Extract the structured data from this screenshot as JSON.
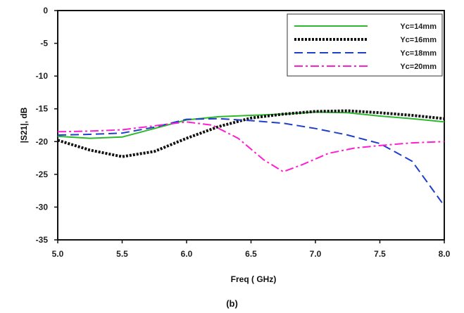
{
  "chart_data": {
    "type": "line",
    "title": "",
    "xlabel": "Freq ( GHz)",
    "ylabel": "|S21|, dB",
    "xlim": [
      5.0,
      8.0
    ],
    "ylim": [
      -35,
      0
    ],
    "x_ticks": [
      "5.0",
      "5.5",
      "6.0",
      "6.5",
      "7.0",
      "7.5",
      "8.0"
    ],
    "y_ticks": [
      "0",
      "-5",
      "-10",
      "-15",
      "-20",
      "-25",
      "-30",
      "-35"
    ],
    "grid": false,
    "legend_position": "top-right",
    "series": [
      {
        "name": "Yc=14mm",
        "color": "#2db82d",
        "dash": "solid",
        "points": [
          [
            5.0,
            -19.2
          ],
          [
            5.25,
            -19.5
          ],
          [
            5.5,
            -19.3
          ],
          [
            5.75,
            -18.0
          ],
          [
            6.0,
            -16.7
          ],
          [
            6.25,
            -16.2
          ],
          [
            6.5,
            -16.0
          ],
          [
            6.75,
            -15.8
          ],
          [
            7.0,
            -15.5
          ],
          [
            7.25,
            -15.6
          ],
          [
            7.5,
            -16.1
          ],
          [
            7.75,
            -16.5
          ],
          [
            8.0,
            -17.0
          ]
        ]
      },
      {
        "name": "Yc=16mm",
        "color": "#111111",
        "dash": "dotted",
        "points": [
          [
            5.0,
            -19.8
          ],
          [
            5.25,
            -21.3
          ],
          [
            5.5,
            -22.3
          ],
          [
            5.75,
            -21.5
          ],
          [
            6.0,
            -19.5
          ],
          [
            6.25,
            -17.7
          ],
          [
            6.5,
            -16.4
          ],
          [
            6.75,
            -15.8
          ],
          [
            7.0,
            -15.4
          ],
          [
            7.25,
            -15.3
          ],
          [
            7.5,
            -15.6
          ],
          [
            7.75,
            -16.0
          ],
          [
            8.0,
            -16.5
          ]
        ]
      },
      {
        "name": "Yc=18mm",
        "color": "#1f3fc8",
        "dash": "dashed",
        "points": [
          [
            5.0,
            -19.0
          ],
          [
            5.25,
            -18.9
          ],
          [
            5.5,
            -18.7
          ],
          [
            5.75,
            -17.8
          ],
          [
            6.0,
            -16.6
          ],
          [
            6.25,
            -16.5
          ],
          [
            6.5,
            -16.8
          ],
          [
            6.75,
            -17.2
          ],
          [
            7.0,
            -18.0
          ],
          [
            7.25,
            -19.0
          ],
          [
            7.5,
            -20.3
          ],
          [
            7.75,
            -23.0
          ],
          [
            8.0,
            -29.8
          ]
        ]
      },
      {
        "name": "Yc=20mm",
        "color": "#ff1fd2",
        "dash": "dashdot",
        "points": [
          [
            5.0,
            -18.5
          ],
          [
            5.25,
            -18.4
          ],
          [
            5.5,
            -18.2
          ],
          [
            5.75,
            -17.6
          ],
          [
            6.0,
            -17.0
          ],
          [
            6.2,
            -17.5
          ],
          [
            6.4,
            -19.5
          ],
          [
            6.6,
            -22.8
          ],
          [
            6.75,
            -24.6
          ],
          [
            6.9,
            -23.5
          ],
          [
            7.1,
            -21.8
          ],
          [
            7.3,
            -21.0
          ],
          [
            7.5,
            -20.6
          ],
          [
            7.75,
            -20.2
          ],
          [
            8.0,
            -20.0
          ]
        ]
      }
    ]
  },
  "caption": "(b)"
}
